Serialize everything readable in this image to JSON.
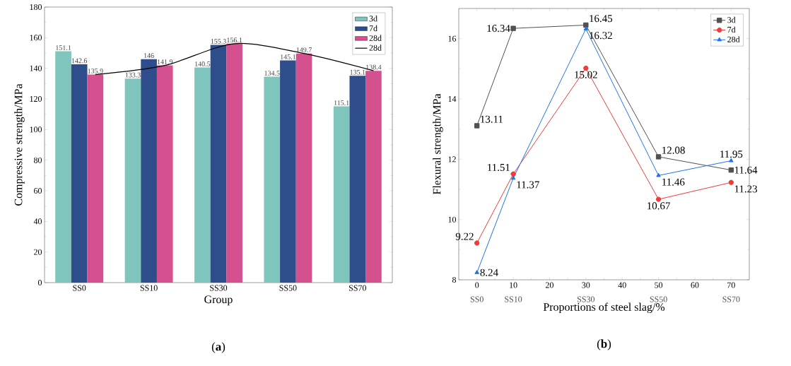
{
  "chart_data": [
    {
      "type": "bar",
      "title": "(**a**)",
      "xlabel": "Group",
      "ylabel": "Compressive strength/MPa",
      "categories": [
        "SS0",
        "SS10",
        "SS30",
        "SS50",
        "SS70"
      ],
      "series": [
        {
          "name": "3d",
          "color": "#7fc4bd",
          "values": [
            151.1,
            133.3,
            140.5,
            134.5,
            115.1
          ],
          "value_labels": [
            "151.1",
            "133.3",
            "140.5",
            "134.5",
            "115.1"
          ]
        },
        {
          "name": "7d",
          "color": "#2e4d8a",
          "values": [
            142.6,
            146,
            155.3,
            145.1,
            135.1
          ],
          "value_labels": [
            "142.6",
            "146",
            "155.3",
            "145.1",
            "135.1"
          ]
        },
        {
          "name": "28d",
          "color": "#d4508e",
          "values": [
            135.9,
            141.9,
            156.1,
            149.7,
            138.4
          ],
          "value_labels": [
            "135.9",
            "141.9",
            "156.1",
            "149.7",
            "138.4"
          ]
        },
        {
          "name": "28d",
          "type": "line",
          "color": "#000000",
          "values": [
            135.9,
            141.9,
            156.1,
            149.7,
            138.4
          ]
        }
      ],
      "ylim": [
        0,
        180
      ],
      "yticks": [
        0,
        20,
        40,
        60,
        80,
        100,
        120,
        140,
        160,
        180
      ],
      "legend": "top right"
    },
    {
      "type": "line",
      "title": "(**b**)",
      "xlabel": "Proportions of steel slag/%",
      "ylabel": "Flexural strength/MPa",
      "x": [
        0,
        10,
        30,
        50,
        70
      ],
      "series": [
        {
          "name": "3d",
          "color": "#505050",
          "marker": "square",
          "values": [
            13.11,
            16.34,
            16.45,
            12.08,
            11.64
          ]
        },
        {
          "name": "7d",
          "color": "#ee3b3b",
          "marker": "circle",
          "values": [
            9.22,
            11.51,
            15.02,
            10.67,
            11.23
          ]
        },
        {
          "name": "28d",
          "color": "#1e73e8",
          "marker": "triangle",
          "values": [
            8.24,
            11.37,
            16.32,
            11.46,
            11.95
          ]
        }
      ],
      "xlim": [
        -5,
        75
      ],
      "ylim": [
        8,
        17
      ],
      "xticks": [
        0,
        10,
        20,
        30,
        40,
        50,
        60,
        70
      ],
      "yticks": [
        8,
        10,
        12,
        14,
        16
      ],
      "legend": "top right",
      "data_labels": true,
      "annotations": [
        "SS0",
        "SS10",
        "SS30",
        "SS50",
        "SS70"
      ]
    }
  ]
}
